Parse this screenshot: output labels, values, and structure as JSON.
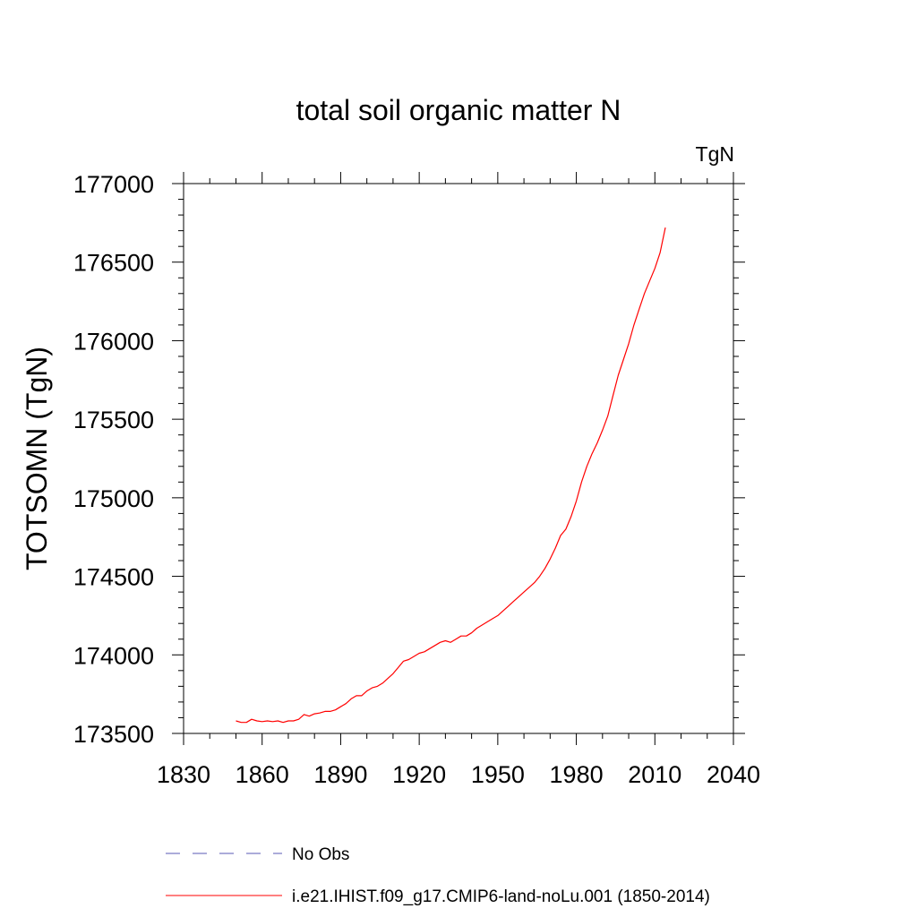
{
  "chart_data": {
    "type": "line",
    "title": "total soil organic matter N",
    "units_label": "TgN",
    "ylabel": "TOTSOMN  (TgN)",
    "xlabel": "",
    "xlim": [
      1830,
      2040
    ],
    "ylim": [
      173500,
      177000
    ],
    "x_major_ticks": [
      1830,
      1860,
      1890,
      1920,
      1950,
      1980,
      2010,
      2040
    ],
    "x_tick_labels": [
      "1830",
      "1860",
      "1890",
      "1920",
      "1950",
      "1980",
      "2010",
      "2040"
    ],
    "y_major_ticks": [
      173500,
      174000,
      174500,
      175000,
      175500,
      176000,
      176500,
      177000
    ],
    "y_tick_labels": [
      "173500",
      "174000",
      "174500",
      "175000",
      "175500",
      "176000",
      "176500",
      "177000"
    ],
    "grid": false,
    "legend_position": "bottom",
    "legend": [
      {
        "label": "No Obs",
        "color": "#5a5ab4",
        "dashed": true
      },
      {
        "label": "i.e21.IHIST.f09_g17.CMIP6-land-noLu.001 (1850-2014)",
        "color": "#ff0000",
        "dashed": false
      }
    ],
    "series": [
      {
        "name": "i.e21.IHIST.f09_g17.CMIP6-land-noLu.001 (1850-2014)",
        "color": "#ff0000",
        "x": [
          1850,
          1852,
          1854,
          1856,
          1858,
          1860,
          1862,
          1864,
          1866,
          1868,
          1870,
          1872,
          1874,
          1876,
          1878,
          1880,
          1882,
          1884,
          1886,
          1888,
          1890,
          1892,
          1894,
          1896,
          1898,
          1900,
          1902,
          1904,
          1906,
          1908,
          1910,
          1912,
          1914,
          1916,
          1918,
          1920,
          1922,
          1924,
          1926,
          1928,
          1930,
          1932,
          1934,
          1936,
          1938,
          1940,
          1942,
          1944,
          1946,
          1948,
          1950,
          1952,
          1954,
          1956,
          1958,
          1960,
          1962,
          1964,
          1966,
          1968,
          1970,
          1972,
          1974,
          1976,
          1978,
          1980,
          1982,
          1984,
          1986,
          1988,
          1990,
          1992,
          1994,
          1996,
          1998,
          2000,
          2002,
          2004,
          2006,
          2008,
          2010,
          2012,
          2014
        ],
        "values": [
          173580,
          173570,
          173570,
          173590,
          173580,
          173575,
          173580,
          173575,
          173580,
          173570,
          173580,
          173580,
          173590,
          173620,
          173610,
          173625,
          173630,
          173640,
          173640,
          173650,
          173670,
          173690,
          173720,
          173740,
          173740,
          173770,
          173790,
          173800,
          173820,
          173850,
          173880,
          173920,
          173960,
          173970,
          173990,
          174010,
          174020,
          174040,
          174060,
          174080,
          174090,
          174080,
          174100,
          174120,
          174120,
          174140,
          174170,
          174190,
          174210,
          174230,
          174250,
          174280,
          174310,
          174340,
          174370,
          174400,
          174430,
          174460,
          174500,
          174550,
          174610,
          174680,
          174760,
          174800,
          174880,
          174980,
          175100,
          175200,
          175280,
          175350,
          175430,
          175520,
          175650,
          175780,
          175880,
          175980,
          176100,
          176200,
          176300,
          176380,
          176460,
          176560,
          176720
        ]
      }
    ]
  }
}
